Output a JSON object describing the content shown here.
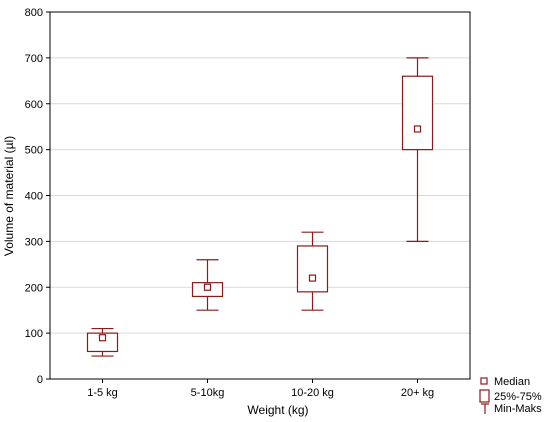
{
  "chart_data": {
    "type": "box",
    "xlabel": "Weight (kg)",
    "ylabel": "Volume of material (µl)",
    "ylim": [
      0,
      800
    ],
    "yticks": [
      0,
      100,
      200,
      300,
      400,
      500,
      600,
      700,
      800
    ],
    "grid": "horizontal",
    "categories": [
      "1-5 kg",
      "5-10kg",
      "10-20 kg",
      "20+ kg"
    ],
    "boxes": [
      {
        "category": "1-5 kg",
        "min": 50,
        "q1": 60,
        "median": 90,
        "q3": 100,
        "max": 110
      },
      {
        "category": "5-10kg",
        "min": 150,
        "q1": 180,
        "median": 200,
        "q3": 210,
        "max": 260
      },
      {
        "category": "10-20 kg",
        "min": 150,
        "q1": 190,
        "median": 220,
        "q3": 290,
        "max": 320
      },
      {
        "category": "20+ kg",
        "min": 300,
        "q1": 500,
        "median": 545,
        "q3": 660,
        "max": 700
      }
    ],
    "legend": {
      "placement": "bottom-right",
      "entries": [
        "Median",
        "25%-75%",
        "Min-Maks"
      ]
    },
    "colors": {
      "series": "#8b1a1a",
      "grid": "#d9d9d9",
      "axis": "#000000"
    }
  }
}
